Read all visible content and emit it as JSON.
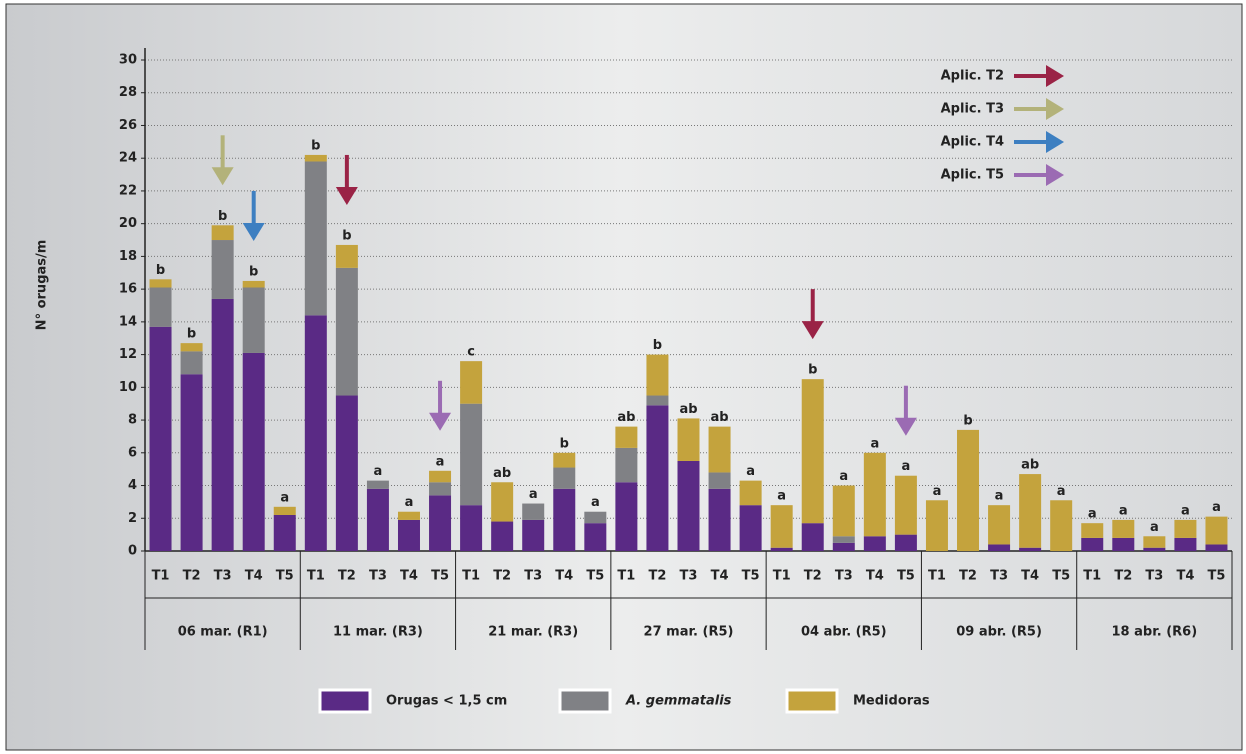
{
  "chart_data": {
    "type": "stacked_bar",
    "y_label": "N° orugas/m",
    "categories": [
      "T1",
      "T2",
      "T3",
      "T4",
      "T5",
      "T1",
      "T2",
      "T3",
      "T4",
      "T5",
      "T1",
      "T2",
      "T3",
      "T4",
      "T5",
      "T1",
      "T2",
      "T3",
      "T4",
      "T5",
      "T1",
      "T2",
      "T3",
      "T4",
      "T5",
      "T1",
      "T2",
      "T3",
      "T4",
      "T5",
      "T1",
      "T2",
      "T3",
      "T4",
      "T5"
    ],
    "groups": [
      "06 mar. (R1)",
      "11 mar. (R3)",
      "21 mar. (R3)",
      "27 mar. (R5)",
      "04 abr. (R5)",
      "09 abr. (R5)",
      "18 abr. (R6)"
    ],
    "series": [
      {
        "name": "Orugas < 1,5 cm",
        "color": "#5a2a85",
        "values": [
          13.7,
          10.8,
          15.4,
          12.1,
          2.2,
          14.4,
          9.5,
          3.8,
          1.9,
          3.4,
          2.8,
          1.8,
          1.9,
          3.8,
          1.7,
          4.2,
          8.9,
          5.5,
          3.8,
          2.8,
          0.2,
          1.7,
          0.5,
          0.9,
          1.0,
          0,
          0,
          0.4,
          0.2,
          0,
          0.8,
          0.8,
          0.2,
          0.8,
          0.4
        ]
      },
      {
        "name": "A. gemmatalis",
        "color": "#808185",
        "values": [
          2.4,
          1.4,
          3.6,
          4.0,
          0,
          9.4,
          7.8,
          0.5,
          0,
          0.8,
          6.2,
          0,
          1.0,
          1.3,
          0.7,
          2.1,
          0.6,
          0,
          1.0,
          0,
          0,
          0,
          0.4,
          0,
          0,
          0,
          0,
          0,
          0,
          0,
          0,
          0,
          0,
          0,
          0
        ]
      },
      {
        "name": "Medidoras",
        "color": "#c4a33d",
        "values": [
          0.5,
          0.5,
          0.9,
          0.4,
          0.5,
          0.4,
          1.4,
          0,
          0.5,
          0.7,
          2.6,
          2.4,
          0,
          0.9,
          0,
          1.3,
          2.5,
          2.6,
          2.8,
          1.5,
          2.6,
          8.8,
          3.1,
          5.1,
          3.6,
          3.1,
          7.4,
          2.4,
          4.5,
          3.1,
          0.9,
          1.1,
          0.7,
          1.1,
          1.7
        ]
      }
    ],
    "letters": [
      "b",
      "b",
      "b",
      "b",
      "a",
      "b",
      "b",
      "a",
      "a",
      "a",
      "c",
      "ab",
      "a",
      "b",
      "a",
      "ab",
      "b",
      "ab",
      "ab",
      "a",
      "a",
      "b",
      "a",
      "a",
      "a",
      "a",
      "b",
      "a",
      "ab",
      "a",
      "a",
      "a",
      "a",
      "a",
      "a"
    ],
    "applications": [
      {
        "label": "Aplic. T2",
        "color": "#9a2346",
        "at": [
          6,
          21
        ]
      },
      {
        "label": "Aplic. T3",
        "color": "#b3b27a",
        "at": [
          2
        ]
      },
      {
        "label": "Aplic. T4",
        "color": "#3d7fc1",
        "at": [
          3
        ]
      },
      {
        "label": "Aplic. T5",
        "color": "#9b6bb3",
        "at": [
          9,
          24
        ]
      }
    ],
    "ylim": [
      0,
      30
    ],
    "yticks": [
      0,
      2,
      4,
      6,
      8,
      10,
      12,
      14,
      16,
      18,
      20,
      22,
      24,
      26,
      28,
      30
    ],
    "grid": true
  }
}
